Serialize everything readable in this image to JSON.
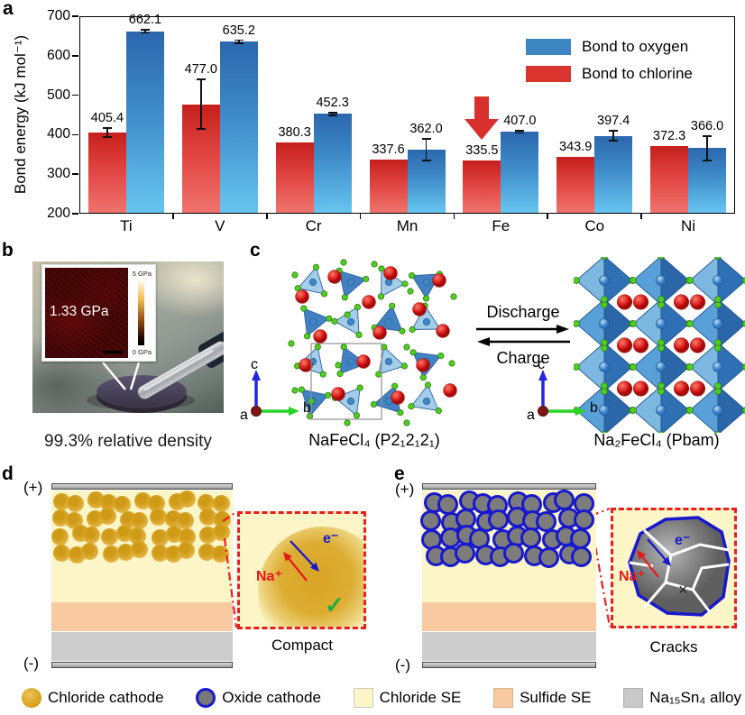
{
  "panels": {
    "a": "a",
    "b": "b",
    "c": "c",
    "d": "d",
    "e": "e"
  },
  "chart_data": {
    "type": "bar",
    "title": "",
    "xlabel": "",
    "ylabel": "Bond energy (kJ mol⁻¹)",
    "ylim": [
      200,
      700
    ],
    "yticks": [
      200,
      300,
      400,
      500,
      600,
      700
    ],
    "grid": false,
    "legend_position": "top-right",
    "categories": [
      "Ti",
      "V",
      "Cr",
      "Mn",
      "Fe",
      "Co",
      "Ni"
    ],
    "series": [
      {
        "name": "Bond to chlorine",
        "color": "#d9352e",
        "values": [
          405.4,
          477.0,
          380.3,
          337.6,
          335.5,
          343.9,
          372.3
        ],
        "errors": [
          11,
          63,
          0,
          0,
          0,
          0,
          0
        ]
      },
      {
        "name": "Bond to oxygen",
        "color": "#3e86c2",
        "values": [
          662.1,
          635.2,
          452.3,
          362.0,
          407.0,
          397.4,
          366.0
        ],
        "errors": [
          4,
          4,
          4,
          27,
          3,
          12,
          31
        ]
      }
    ],
    "highlight": {
      "category": "Fe",
      "series": "Bond to chlorine",
      "marker": "red-down-arrow"
    }
  },
  "panel_b": {
    "inset_value": "1.33 GPa",
    "scale_top": "5 GPa",
    "scale_bottom": "0 GPa",
    "caption": "99.3% relative density"
  },
  "panel_c": {
    "left_formula": "NaFeCl₄ (P2₁2₁2₁)",
    "right_formula": "Na₂FeCl₄ (Pbam)",
    "discharge": "Discharge",
    "charge": "Charge",
    "axis": {
      "a": "a",
      "b": "b",
      "c": "c"
    }
  },
  "panel_d": {
    "plus": "(+)",
    "minus": "(-)",
    "na_label": "Na⁺",
    "e_label": "e⁻",
    "check": "✓",
    "caption": "Compact"
  },
  "panel_e": {
    "plus": "(+)",
    "minus": "(-)",
    "na_label": "Na⁺",
    "e_label": "e⁻",
    "cross": "×",
    "caption": "Cracks"
  },
  "bottom_legend": {
    "items": [
      {
        "swatch": "chloride-cathode-circle",
        "label": "Chloride cathode"
      },
      {
        "swatch": "oxide-cathode-circle",
        "label": "Oxide cathode"
      },
      {
        "swatch": "chloride-se-square",
        "label": "Chloride SE"
      },
      {
        "swatch": "sulfide-se-square",
        "label": "Sulfide SE"
      },
      {
        "swatch": "alloy-square",
        "label": "Na₁₅Sn₄ alloy"
      }
    ]
  },
  "colors": {
    "oxygen_blue": "#3e86c2",
    "chlorine_red": "#d9352e",
    "highlight_arrow_red": "#d8302c",
    "chloride_se_yellow": "#fbf5c8",
    "sulfide_se_peach": "#f9c9a2",
    "alloy_gray": "#c9c9c9",
    "oxide_border_blue": "#1818cc",
    "na_ion_red": "#e81818",
    "electron_blue": "#1818cc"
  }
}
